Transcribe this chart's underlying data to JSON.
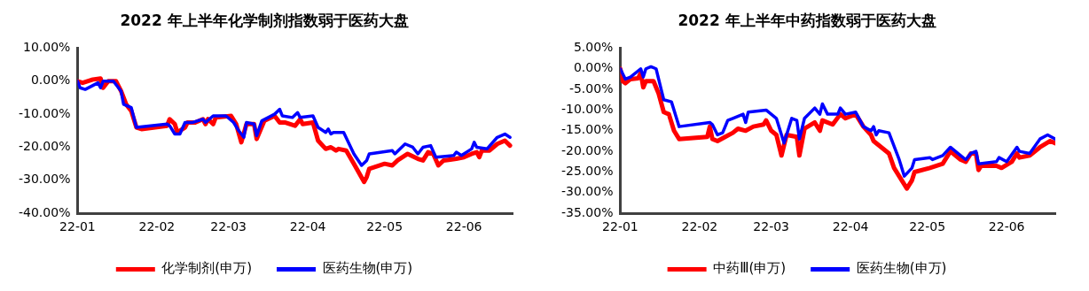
{
  "chart_data": [
    {
      "type": "line",
      "title": "2022 年上半年化学制剂指数弱于医药大盘",
      "xlim": [
        "2022-01-01",
        "2022-06-20"
      ],
      "xticks": [
        {
          "value": "2022-01-01",
          "label": "22-01"
        },
        {
          "value": "2022-02-01",
          "label": "22-02"
        },
        {
          "value": "2022-03-01",
          "label": "22-03"
        },
        {
          "value": "2022-04-01",
          "label": "22-04"
        },
        {
          "value": "2022-05-01",
          "label": "22-05"
        },
        {
          "value": "2022-06-01",
          "label": "22-06"
        }
      ],
      "ylim": [
        -40,
        10
      ],
      "yticks": [
        {
          "value": 10,
          "label": "10.00%"
        },
        {
          "value": 0,
          "label": "0.00%"
        },
        {
          "value": -10,
          "label": "-10.00%"
        },
        {
          "value": -20,
          "label": "-20.00%"
        },
        {
          "value": -30,
          "label": "-30.00%"
        },
        {
          "value": -40,
          "label": "-40.00%"
        }
      ],
      "grid": false,
      "legend": "bottom",
      "marker": "none",
      "line_style": "solid",
      "series": [
        {
          "name": "化学制剂(申万)",
          "color": "#ff0000",
          "x": [
            "2022-01-01",
            "2022-01-03",
            "2022-01-07",
            "2022-01-10",
            "2022-01-11",
            "2022-01-13",
            "2022-01-16",
            "2022-01-18",
            "2022-01-20",
            "2022-01-22",
            "2022-01-24",
            "2022-01-26",
            "2022-02-05",
            "2022-02-06",
            "2022-02-08",
            "2022-02-09",
            "2022-02-12",
            "2022-02-13",
            "2022-02-16",
            "2022-02-19",
            "2022-02-20",
            "2022-02-21",
            "2022-02-23",
            "2022-02-24",
            "2022-03-02",
            "2022-03-04",
            "2022-03-06",
            "2022-03-08",
            "2022-03-11",
            "2022-03-12",
            "2022-03-15",
            "2022-03-19",
            "2022-03-21",
            "2022-03-23",
            "2022-03-27",
            "2022-03-29",
            "2022-03-30",
            "2022-04-03",
            "2022-04-05",
            "2022-04-08",
            "2022-04-10",
            "2022-04-12",
            "2022-04-13",
            "2022-04-16",
            "2022-04-19",
            "2022-04-23",
            "2022-04-24",
            "2022-04-25",
            "2022-05-01",
            "2022-05-04",
            "2022-05-06",
            "2022-05-10",
            "2022-05-14",
            "2022-05-16",
            "2022-05-18",
            "2022-05-20",
            "2022-05-22",
            "2022-05-24",
            "2022-05-29",
            "2022-06-01",
            "2022-06-04",
            "2022-06-06",
            "2022-06-07",
            "2022-06-08",
            "2022-06-11",
            "2022-06-14",
            "2022-06-17",
            "2022-06-19"
          ],
          "values": [
            0,
            -0.5,
            0.5,
            0.8,
            -2,
            0,
            0,
            -3,
            -7,
            -9,
            -14,
            -14.5,
            -13.5,
            -11.5,
            -13,
            -15.5,
            -14,
            -12.5,
            -12.5,
            -11.5,
            -13,
            -11.5,
            -13,
            -11,
            -10.5,
            -13,
            -18.5,
            -13,
            -13,
            -17.5,
            -12,
            -10.5,
            -12.5,
            -12.5,
            -13.5,
            -11.5,
            -13,
            -12.5,
            -18,
            -20.5,
            -20,
            -21,
            -20.5,
            -21,
            -25,
            -30.5,
            -29,
            -26.5,
            -25,
            -25.5,
            -24,
            -22,
            -23.5,
            -24,
            -21.5,
            -22,
            -25.5,
            -24,
            -23.5,
            -23,
            -22,
            -21.5,
            -23,
            -21,
            -21,
            -19,
            -18,
            -19.5
          ]
        },
        {
          "name": "医药生物(申万)",
          "color": "#0000ff",
          "x": [
            "2022-01-01",
            "2022-01-02",
            "2022-01-04",
            "2022-01-09",
            "2022-01-10",
            "2022-01-11",
            "2022-01-15",
            "2022-01-18",
            "2022-01-19",
            "2022-01-22",
            "2022-01-24",
            "2022-02-05",
            "2022-02-06",
            "2022-02-08",
            "2022-02-10",
            "2022-02-12",
            "2022-02-15",
            "2022-02-19",
            "2022-02-20",
            "2022-02-23",
            "2022-02-28",
            "2022-03-03",
            "2022-03-05",
            "2022-03-07",
            "2022-03-08",
            "2022-03-11",
            "2022-03-12",
            "2022-03-14",
            "2022-03-19",
            "2022-03-21",
            "2022-03-22",
            "2022-03-26",
            "2022-03-28",
            "2022-03-29",
            "2022-04-03",
            "2022-04-05",
            "2022-04-08",
            "2022-04-09",
            "2022-04-10",
            "2022-04-11",
            "2022-04-15",
            "2022-04-19",
            "2022-04-22",
            "2022-04-24",
            "2022-04-25",
            "2022-05-04",
            "2022-05-05",
            "2022-05-09",
            "2022-05-12",
            "2022-05-14",
            "2022-05-16",
            "2022-05-19",
            "2022-05-21",
            "2022-05-28",
            "2022-05-29",
            "2022-05-31",
            "2022-06-04",
            "2022-06-05",
            "2022-06-06",
            "2022-06-10",
            "2022-06-14",
            "2022-06-17",
            "2022-06-19"
          ],
          "values": [
            0,
            -2,
            -2.5,
            -0.5,
            -2,
            0,
            0,
            -3,
            -7,
            -8,
            -14,
            -13,
            -13.5,
            -16,
            -16,
            -12.5,
            -12.5,
            -11.5,
            -12.5,
            -10.5,
            -10.5,
            -12.5,
            -15,
            -17,
            -12.5,
            -13,
            -16.5,
            -12,
            -10,
            -8.5,
            -10.5,
            -11,
            -9.5,
            -11,
            -10.5,
            -14,
            -15.5,
            -14.5,
            -16,
            -15.5,
            -15.5,
            -22,
            -25.5,
            -24,
            -22,
            -21,
            -22,
            -19,
            -20,
            -22,
            -20,
            -19.5,
            -23,
            -22.5,
            -21.5,
            -22.5,
            -20.5,
            -18.5,
            -20,
            -20.5,
            -17,
            -16,
            -17
          ]
        }
      ]
    },
    {
      "type": "line",
      "title": "2022 年上半年中药指数弱于医药大盘",
      "xlim": [
        "2022-01-01",
        "2022-06-20"
      ],
      "xticks": [
        {
          "value": "2022-01-01",
          "label": "22-01"
        },
        {
          "value": "2022-02-01",
          "label": "22-02"
        },
        {
          "value": "2022-03-01",
          "label": "22-03"
        },
        {
          "value": "2022-04-01",
          "label": "22-04"
        },
        {
          "value": "2022-05-01",
          "label": "22-05"
        },
        {
          "value": "2022-06-01",
          "label": "22-06"
        }
      ],
      "ylim": [
        -35,
        5
      ],
      "yticks": [
        {
          "value": 5,
          "label": "5.00%"
        },
        {
          "value": 0,
          "label": "0.00%"
        },
        {
          "value": -5,
          "label": "-5.00%"
        },
        {
          "value": -10,
          "label": "-10.00%"
        },
        {
          "value": -15,
          "label": "-15.00%"
        },
        {
          "value": -20,
          "label": "-20.00%"
        },
        {
          "value": -25,
          "label": "-25.00%"
        },
        {
          "value": -30,
          "label": "-30.00%"
        },
        {
          "value": -35,
          "label": "-35.00%"
        }
      ],
      "grid": false,
      "legend": "bottom",
      "marker": "none",
      "line_style": "solid",
      "series": [
        {
          "name": "中药Ⅲ(申万)",
          "color": "#ff0000",
          "x": [
            "2022-01-01",
            "2022-01-02",
            "2022-01-03",
            "2022-01-05",
            "2022-01-08",
            "2022-01-09",
            "2022-01-10",
            "2022-01-11",
            "2022-01-14",
            "2022-01-16",
            "2022-01-18",
            "2022-01-20",
            "2022-01-22",
            "2022-01-24",
            "2022-02-04",
            "2022-02-05",
            "2022-02-06",
            "2022-02-08",
            "2022-02-11",
            "2022-02-14",
            "2022-02-16",
            "2022-02-19",
            "2022-02-22",
            "2022-02-26",
            "2022-02-27",
            "2022-03-01",
            "2022-03-03",
            "2022-03-05",
            "2022-03-07",
            "2022-03-11",
            "2022-03-12",
            "2022-03-14",
            "2022-03-18",
            "2022-03-20",
            "2022-03-21",
            "2022-03-25",
            "2022-03-28",
            "2022-03-30",
            "2022-04-03",
            "2022-04-06",
            "2022-04-09",
            "2022-04-10",
            "2022-04-16",
            "2022-04-18",
            "2022-04-23",
            "2022-04-25",
            "2022-04-26",
            "2022-05-02",
            "2022-05-07",
            "2022-05-10",
            "2022-05-14",
            "2022-05-16",
            "2022-05-18",
            "2022-05-20",
            "2022-05-21",
            "2022-05-22",
            "2022-05-28",
            "2022-05-30",
            "2022-06-03",
            "2022-06-05",
            "2022-06-06",
            "2022-06-10",
            "2022-06-14",
            "2022-06-18",
            "2022-06-20"
          ],
          "values": [
            0,
            -3,
            -3.5,
            -2.5,
            -2.3,
            -1,
            -4.5,
            -3,
            -3,
            -6,
            -10.5,
            -11,
            -15,
            -17,
            -16.5,
            -14,
            -17,
            -17.5,
            -16.5,
            -15.5,
            -14.5,
            -15,
            -14,
            -13.5,
            -12.5,
            -15,
            -16,
            -21,
            -16,
            -16.5,
            -21,
            -14.5,
            -13,
            -15,
            -12.5,
            -13.5,
            -11,
            -12,
            -11,
            -14,
            -16,
            -17.5,
            -20.5,
            -24,
            -29,
            -27,
            -25,
            -24,
            -23,
            -20,
            -22,
            -22.5,
            -20.5,
            -20.5,
            -24.5,
            -23.5,
            -23.5,
            -24,
            -22.5,
            -20.5,
            -21.5,
            -21,
            -19,
            -17.5,
            -18
          ]
        },
        {
          "name": "医药生物(申万)",
          "color": "#0000ff",
          "x": [
            "2022-01-01",
            "2022-01-03",
            "2022-01-05",
            "2022-01-09",
            "2022-01-10",
            "2022-01-11",
            "2022-01-13",
            "2022-01-15",
            "2022-01-17",
            "2022-01-18",
            "2022-01-21",
            "2022-01-24",
            "2022-02-05",
            "2022-02-06",
            "2022-02-08",
            "2022-02-10",
            "2022-02-12",
            "2022-02-14",
            "2022-02-18",
            "2022-02-19",
            "2022-02-20",
            "2022-02-27",
            "2022-03-03",
            "2022-03-06",
            "2022-03-09",
            "2022-03-11",
            "2022-03-12",
            "2022-03-14",
            "2022-03-18",
            "2022-03-20",
            "2022-03-21",
            "2022-03-23",
            "2022-03-27",
            "2022-03-28",
            "2022-03-30",
            "2022-04-03",
            "2022-04-06",
            "2022-04-09",
            "2022-04-10",
            "2022-04-11",
            "2022-04-12",
            "2022-04-16",
            "2022-04-20",
            "2022-04-22",
            "2022-04-25",
            "2022-04-26",
            "2022-05-02",
            "2022-05-03",
            "2022-05-07",
            "2022-05-10",
            "2022-05-14",
            "2022-05-16",
            "2022-05-18",
            "2022-05-20",
            "2022-05-21",
            "2022-05-28",
            "2022-05-29",
            "2022-06-01",
            "2022-06-05",
            "2022-06-06",
            "2022-06-10",
            "2022-06-14",
            "2022-06-17",
            "2022-06-20"
          ],
          "values": [
            0,
            -2.5,
            -2,
            0,
            -2,
            0,
            0.5,
            0,
            -5,
            -7.5,
            -8,
            -14,
            -13,
            -13.5,
            -16,
            -15.5,
            -12.5,
            -12,
            -11,
            -13,
            -10.5,
            -10,
            -12,
            -18,
            -12,
            -12.5,
            -17,
            -12,
            -9.5,
            -11,
            -8.5,
            -11,
            -11,
            -9.5,
            -11,
            -10.5,
            -14,
            -15,
            -14,
            -16,
            -15,
            -15.5,
            -22,
            -26,
            -24,
            -22,
            -21.5,
            -22,
            -21,
            -19,
            -21,
            -22,
            -20.5,
            -20,
            -23,
            -22.5,
            -21.5,
            -22.5,
            -19,
            -20,
            -20.5,
            -17,
            -16,
            -17
          ]
        }
      ]
    }
  ]
}
